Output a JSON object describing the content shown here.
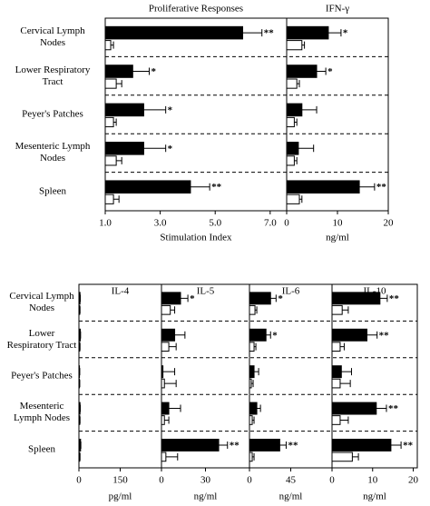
{
  "chart_data": [
    {
      "type": "bar",
      "title": "Proliferative Responses",
      "xlabel": "Stimulation Index",
      "categories": [
        "Cervical Lymph Nodes",
        "Lower Respiratory Tract",
        "Peyer's Patches",
        "Mesenteric Lymph Nodes",
        "Spleen"
      ],
      "xlim": [
        1,
        7.6
      ],
      "xticks": [
        {
          "value": 1,
          "label": "1.0"
        },
        {
          "value": 3,
          "label": "3.0"
        },
        {
          "value": 5,
          "label": "5.0"
        },
        {
          "value": 7,
          "label": "7.0"
        }
      ],
      "series": [
        {
          "color": "#000000",
          "values": [
            6.0,
            2.0,
            2.4,
            2.4,
            4.1
          ],
          "errors": [
            0.7,
            0.6,
            0.8,
            0.8,
            0.7
          ],
          "significance": [
            "**",
            "*",
            "*",
            "*",
            "**"
          ]
        },
        {
          "color": "#ffffff",
          "values": [
            1.2,
            1.4,
            1.3,
            1.4,
            1.3
          ],
          "errors": [
            0.1,
            0.2,
            0.1,
            0.2,
            0.2
          ]
        }
      ]
    },
    {
      "type": "bar",
      "title": "IFN-γ",
      "xlabel": "ng/ml",
      "xlim": [
        0,
        20
      ],
      "xticks": [
        0,
        10,
        20
      ],
      "series": [
        {
          "color": "#000000",
          "values": [
            8.2,
            5.9,
            3.0,
            2.3,
            14.3
          ],
          "errors": [
            2.5,
            1.8,
            2.9,
            3.0,
            3.0
          ],
          "significance": [
            "*",
            "*",
            null,
            null,
            "**"
          ]
        },
        {
          "color": "#ffffff",
          "values": [
            3.0,
            2.0,
            1.5,
            1.5,
            2.5
          ],
          "errors": [
            0.5,
            0.5,
            0.5,
            0.5,
            0.5
          ]
        }
      ]
    },
    {
      "type": "bar",
      "title": "IL-4",
      "xlabel": "pg/ml",
      "categories": [
        "Cervical Lymph Nodes",
        "Lower Respiratory Tract",
        "Peyer's Patches",
        "Mesenteric Lymph Nodes",
        "Spleen"
      ],
      "xlim": [
        0,
        300
      ],
      "xticks": [
        0,
        150
      ],
      "series": [
        {
          "color": "#000000",
          "values": [
            4,
            5,
            2,
            4,
            6
          ],
          "errors": [
            1,
            1,
            1,
            1,
            1
          ]
        },
        {
          "color": "#ffffff",
          "values": [
            3,
            3,
            2,
            3,
            3
          ],
          "errors": [
            1,
            1,
            1,
            1,
            1
          ]
        }
      ]
    },
    {
      "type": "bar",
      "title": "IL-5",
      "xlabel": "ng/ml",
      "xlim": [
        0,
        60
      ],
      "xticks": [
        0,
        30
      ],
      "series": [
        {
          "color": "#000000",
          "values": [
            13,
            9,
            1,
            5,
            39
          ],
          "errors": [
            5,
            7,
            8,
            8,
            6
          ],
          "significance": [
            "*",
            null,
            null,
            null,
            "**"
          ]
        },
        {
          "color": "#ffffff",
          "values": [
            6,
            5,
            2,
            2,
            3
          ],
          "errors": [
            3,
            5,
            8,
            3,
            8
          ]
        }
      ]
    },
    {
      "type": "bar",
      "title": "IL-6",
      "xlabel": "ng/ml",
      "xlim": [
        0,
        90
      ],
      "xticks": [
        0,
        45
      ],
      "series": [
        {
          "color": "#000000",
          "values": [
            23,
            18,
            5,
            8,
            33
          ],
          "errors": [
            6,
            5,
            5,
            4,
            7
          ],
          "significance": [
            "*",
            "*",
            null,
            null,
            "**"
          ]
        },
        {
          "color": "#ffffff",
          "values": [
            6,
            5,
            2,
            3,
            3
          ],
          "errors": [
            2,
            2,
            2,
            2,
            2
          ]
        }
      ]
    },
    {
      "type": "bar",
      "title": "IL-10",
      "xlabel": "ng/ml",
      "xlim": [
        0,
        21
      ],
      "xticks": [
        0,
        10,
        20
      ],
      "series": [
        {
          "color": "#000000",
          "values": [
            11.8,
            8.6,
            2.3,
            10.9,
            14.5
          ],
          "errors": [
            1.8,
            2.5,
            2.5,
            2.5,
            2.5
          ],
          "significance": [
            "**",
            "**",
            null,
            "**",
            "**"
          ]
        },
        {
          "color": "#ffffff",
          "values": [
            2.5,
            2.0,
            2.0,
            2.0,
            5.0
          ],
          "errors": [
            1.5,
            1.0,
            2.5,
            2.0,
            1.5
          ]
        }
      ]
    }
  ]
}
